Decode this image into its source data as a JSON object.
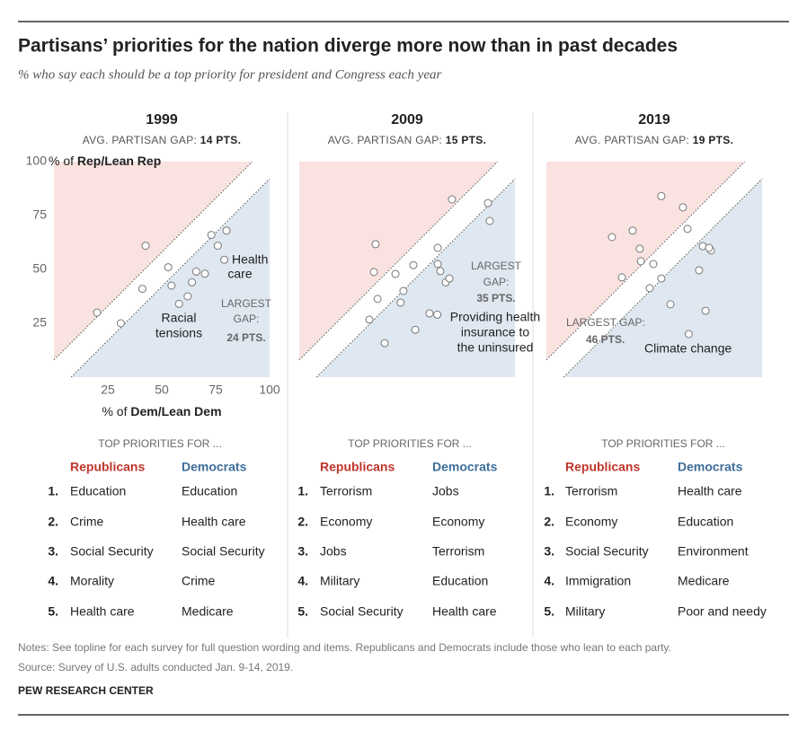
{
  "title": "Partisans’ priorities for the nation diverge more now than in past decades",
  "subtitle": "% who say each should be a top priority for president and Congress each year",
  "chart_data": [
    {
      "type": "scatter",
      "title": "1999",
      "gap_label": "AVG. PARTISAN GAP:",
      "gap_value": "14 PTS.",
      "xlabel": {
        "prefix": "% of",
        "bold": "Dem/Lean Dem"
      },
      "ylabel": {
        "prefix": "% of",
        "bold": "Rep/Lean Rep"
      },
      "xlim": [
        0,
        100
      ],
      "ylim": [
        0,
        100
      ],
      "xticks": [
        25,
        50,
        75,
        100
      ],
      "yticks": [
        25,
        50,
        75,
        100
      ],
      "x": [
        20,
        31,
        42.5,
        41,
        53,
        54.5,
        66,
        64,
        62,
        58,
        70,
        73,
        76,
        80,
        79
      ],
      "y": [
        30,
        25,
        61,
        41,
        51,
        42.5,
        49,
        44,
        37.5,
        34,
        48,
        66,
        61,
        68,
        54.5
      ],
      "annotations": [
        {
          "lines": [
            "Health",
            "care"
          ]
        },
        {
          "lines": [
            "Racial",
            "tensions"
          ]
        },
        {
          "lines": [
            "LARGEST",
            "GAP:",
            "24 PTS."
          ]
        }
      ]
    },
    {
      "type": "scatter",
      "title": "2009",
      "gap_label": "AVG. PARTISAN GAP:",
      "gap_value": "15 PTS.",
      "xlim": [
        0,
        100
      ],
      "ylim": [
        0,
        100
      ],
      "x": [
        35.4,
        34.6,
        36.3,
        32.5,
        39.6,
        44.6,
        48.3,
        47,
        52.9,
        53.8,
        60.4,
        64,
        64.2,
        64.2,
        65.4,
        67.9,
        69.6,
        70.8,
        87.5,
        88.3
      ],
      "y": [
        61.7,
        48.8,
        36.3,
        26.7,
        15.8,
        47.9,
        40,
        34.6,
        52,
        22,
        29.6,
        29,
        60,
        52.5,
        49.2,
        44,
        45.8,
        82.5,
        80.8,
        72.5
      ],
      "annotations": [
        {
          "lines": [
            "LARGEST",
            "GAP:",
            "35 PTS."
          ]
        },
        {
          "lines": [
            "Providing health",
            "insurance to",
            "the uninsured"
          ]
        }
      ]
    },
    {
      "type": "scatter",
      "title": "2019",
      "gap_label": "AVG. PARTISAN GAP:",
      "gap_value": "19 PTS.",
      "xlim": [
        0,
        100
      ],
      "ylim": [
        0,
        100
      ],
      "x": [
        53.3,
        63.3,
        65.4,
        30.4,
        40,
        43.3,
        43.8,
        49.6,
        53.3,
        47.9,
        35,
        57.5,
        72.5,
        76.3,
        75.4,
        70.8,
        73.8,
        66
      ],
      "y": [
        84,
        78.8,
        68.8,
        65,
        68,
        59.6,
        53.8,
        52.5,
        45.8,
        41.3,
        46.3,
        33.8,
        60.8,
        58.8,
        60,
        49.6,
        30.8,
        20
      ],
      "annotations": [
        {
          "lines": [
            "LARGEST GAP:",
            "46 PTS."
          ]
        },
        {
          "lines": [
            "Climate change"
          ]
        }
      ]
    }
  ],
  "priorities": [
    {
      "header": "TOP PRIORITIES FOR ...",
      "columns": [
        "Republicans",
        "Democrats"
      ],
      "rows": [
        [
          "1.",
          "Education",
          "Education"
        ],
        [
          "2.",
          "Crime",
          "Health care"
        ],
        [
          "3.",
          "Social Security",
          "Social Security"
        ],
        [
          "4.",
          "Morality",
          "Crime"
        ],
        [
          "5.",
          "Health care",
          "Medicare"
        ]
      ]
    },
    {
      "header": "TOP PRIORITIES FOR ...",
      "columns": [
        "Republicans",
        "Democrats"
      ],
      "rows": [
        [
          "1.",
          "Terrorism",
          "Jobs"
        ],
        [
          "2.",
          "Economy",
          "Economy"
        ],
        [
          "3.",
          "Jobs",
          "Terrorism"
        ],
        [
          "4.",
          "Military",
          "Education"
        ],
        [
          "5.",
          "Social Security",
          "Health care"
        ]
      ]
    },
    {
      "header": "TOP PRIORITIES FOR ...",
      "columns": [
        "Republicans",
        "Democrats"
      ],
      "rows": [
        [
          "1.",
          "Terrorism",
          "Health care"
        ],
        [
          "2.",
          "Economy",
          "Education"
        ],
        [
          "3.",
          "Social Security",
          "Environment"
        ],
        [
          "4.",
          "Immigration",
          "Medicare"
        ],
        [
          "5.",
          "Military",
          "Poor and needy"
        ]
      ]
    }
  ],
  "notes": "Notes: See topline for each survey for full question wording and items. Republicans and Democrats include those who lean to each party.",
  "source": "Source: Survey of U.S. adults conducted Jan. 9-14, 2019.",
  "brand": "PEW RESEARCH CENTER"
}
